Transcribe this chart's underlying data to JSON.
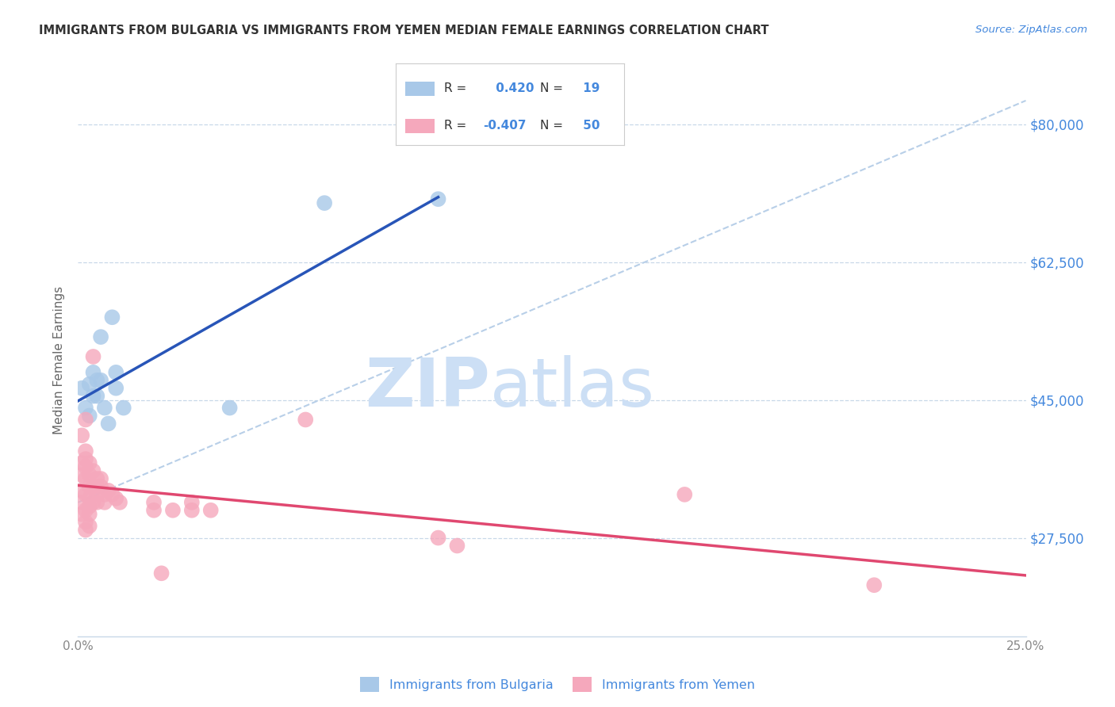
{
  "title": "IMMIGRANTS FROM BULGARIA VS IMMIGRANTS FROM YEMEN MEDIAN FEMALE EARNINGS CORRELATION CHART",
  "source": "Source: ZipAtlas.com",
  "ylabel": "Median Female Earnings",
  "xlim": [
    0.0,
    0.25
  ],
  "ylim": [
    15000,
    85000
  ],
  "yticks": [
    27500,
    45000,
    62500,
    80000
  ],
  "ytick_labels": [
    "$27,500",
    "$45,000",
    "$62,500",
    "$80,000"
  ],
  "xticks": [
    0.0,
    0.05,
    0.1,
    0.15,
    0.2,
    0.25
  ],
  "xtick_labels": [
    "0.0%",
    "",
    "",
    "",
    "",
    "25.0%"
  ],
  "R_bulgaria": 0.42,
  "N_bulgaria": 19,
  "R_yemen": -0.407,
  "N_yemen": 50,
  "color_bulgaria": "#a8c8e8",
  "color_yemen": "#f5a8bc",
  "line_color_bulgaria": "#2855b8",
  "line_color_yemen": "#e04870",
  "line_color_dashed": "#b8cfe8",
  "watermark_zip": "ZIP",
  "watermark_atlas": "atlas",
  "watermark_color": "#ccdff5",
  "title_color": "#333333",
  "source_color": "#4488dd",
  "axis_label_color": "#666666",
  "tick_color": "#888888",
  "grid_color": "#c8d8e8",
  "legend_border_color": "#cccccc",
  "scatter_bulgaria": [
    [
      0.001,
      46500
    ],
    [
      0.002,
      44000
    ],
    [
      0.003,
      47000
    ],
    [
      0.003,
      43000
    ],
    [
      0.004,
      48500
    ],
    [
      0.004,
      45500
    ],
    [
      0.005,
      47500
    ],
    [
      0.005,
      45500
    ],
    [
      0.006,
      53000
    ],
    [
      0.006,
      47500
    ],
    [
      0.007,
      44000
    ],
    [
      0.008,
      42000
    ],
    [
      0.009,
      55500
    ],
    [
      0.01,
      48500
    ],
    [
      0.01,
      46500
    ],
    [
      0.012,
      44000
    ],
    [
      0.04,
      44000
    ],
    [
      0.065,
      70000
    ],
    [
      0.095,
      70500
    ]
  ],
  "scatter_yemen": [
    [
      0.001,
      40500
    ],
    [
      0.001,
      37000
    ],
    [
      0.001,
      35500
    ],
    [
      0.001,
      33500
    ],
    [
      0.001,
      32000
    ],
    [
      0.001,
      30500
    ],
    [
      0.002,
      42500
    ],
    [
      0.002,
      38500
    ],
    [
      0.002,
      37500
    ],
    [
      0.002,
      36500
    ],
    [
      0.002,
      35000
    ],
    [
      0.002,
      33000
    ],
    [
      0.002,
      31000
    ],
    [
      0.002,
      29500
    ],
    [
      0.002,
      28500
    ],
    [
      0.003,
      37000
    ],
    [
      0.003,
      35500
    ],
    [
      0.003,
      34000
    ],
    [
      0.003,
      32500
    ],
    [
      0.003,
      31500
    ],
    [
      0.003,
      30500
    ],
    [
      0.003,
      29000
    ],
    [
      0.004,
      50500
    ],
    [
      0.004,
      36000
    ],
    [
      0.004,
      34000
    ],
    [
      0.004,
      32000
    ],
    [
      0.005,
      35000
    ],
    [
      0.005,
      34000
    ],
    [
      0.005,
      33000
    ],
    [
      0.005,
      32000
    ],
    [
      0.006,
      35000
    ],
    [
      0.006,
      34000
    ],
    [
      0.007,
      33000
    ],
    [
      0.007,
      32000
    ],
    [
      0.008,
      33500
    ],
    [
      0.009,
      33000
    ],
    [
      0.01,
      32500
    ],
    [
      0.011,
      32000
    ],
    [
      0.02,
      32000
    ],
    [
      0.02,
      31000
    ],
    [
      0.022,
      23000
    ],
    [
      0.025,
      31000
    ],
    [
      0.03,
      32000
    ],
    [
      0.03,
      31000
    ],
    [
      0.035,
      31000
    ],
    [
      0.06,
      42500
    ],
    [
      0.095,
      27500
    ],
    [
      0.1,
      26500
    ],
    [
      0.16,
      33000
    ],
    [
      0.21,
      21500
    ]
  ],
  "dashed_line": [
    [
      0.0,
      32000
    ],
    [
      0.25,
      83000
    ]
  ]
}
